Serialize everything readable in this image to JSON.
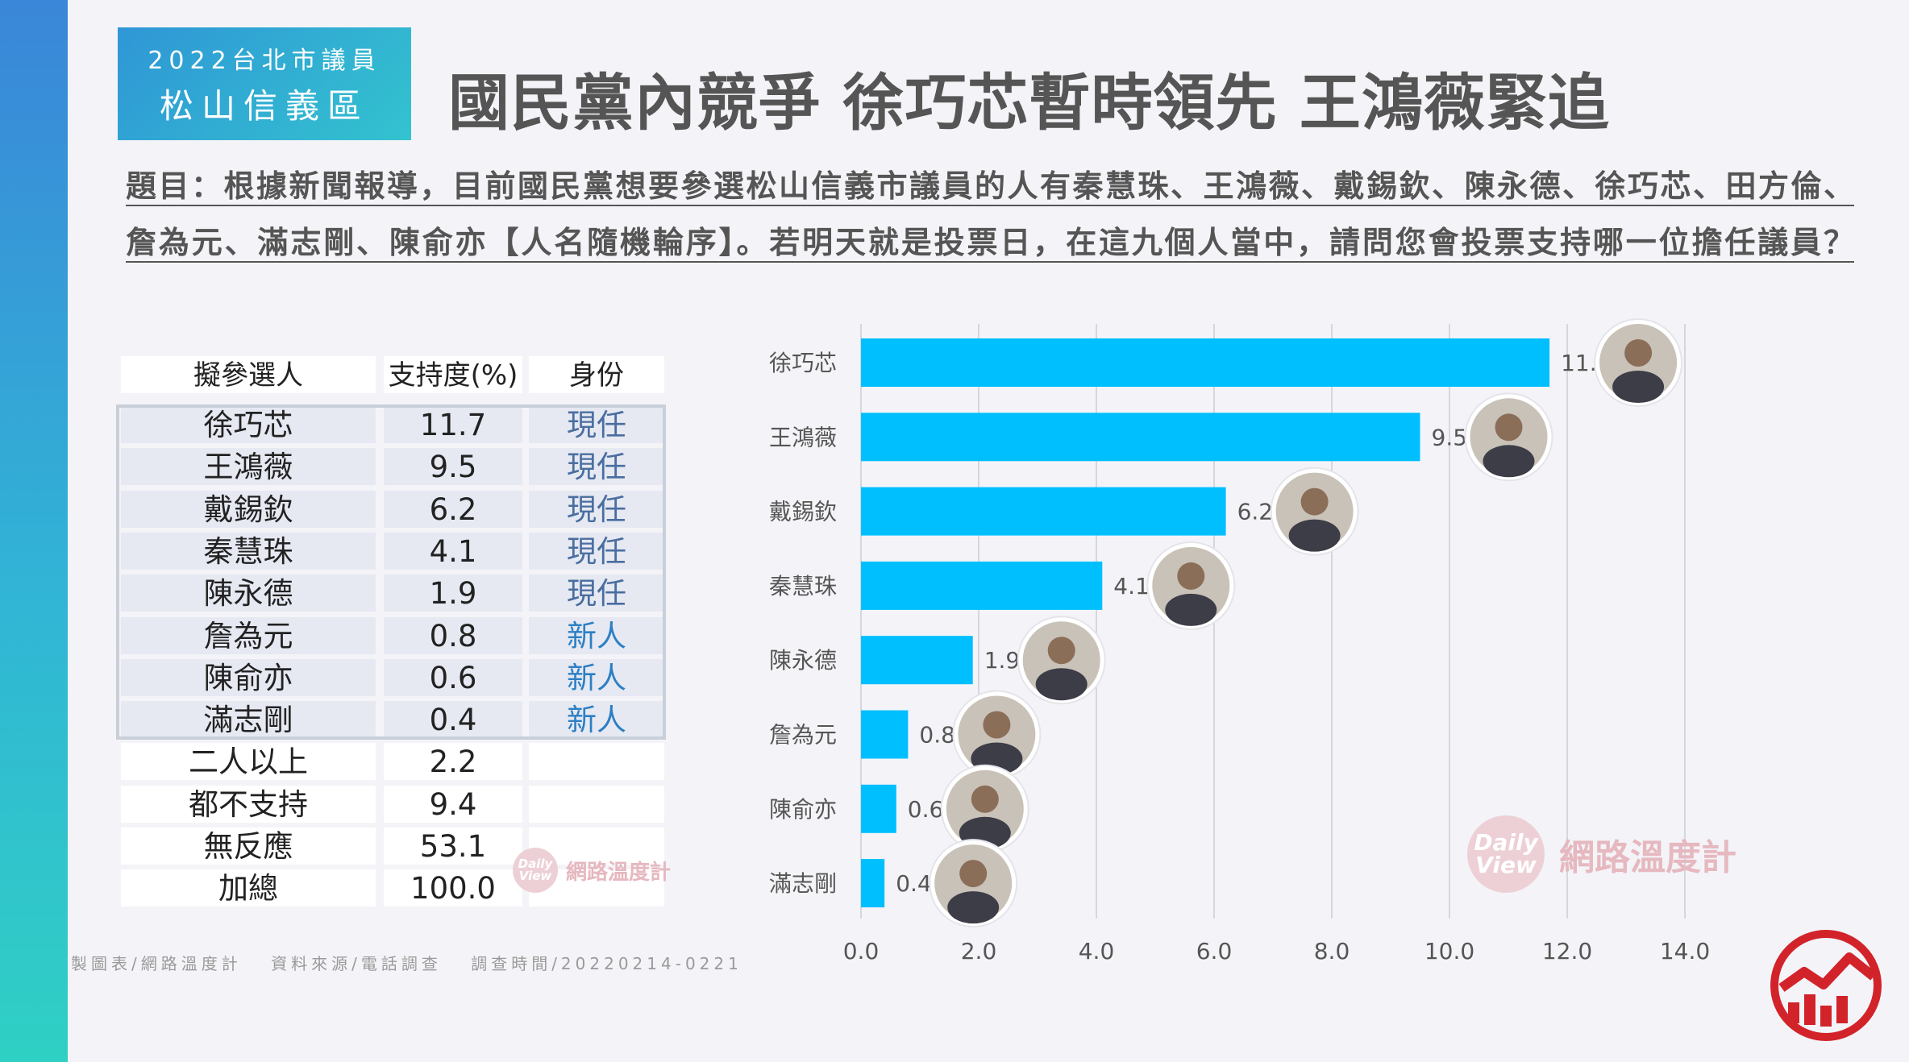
{
  "header": {
    "tag_line1": "2022台北市議員",
    "tag_line2": "松山信義區",
    "title": "國民黨內競爭 徐巧芯暫時領先 王鴻薇緊追"
  },
  "question": {
    "line1": "題目：根據新聞報導，目前國民黨想要參選松山信義市議員的人有秦慧珠、王鴻薇、戴錫欽、陳永德、徐巧芯、田方倫、",
    "line2": "詹為元、滿志剛、陳俞亦【人名隨機輪序】。若明天就是投票日，在這九個人當中，請問您會投票支持哪一位擔任議員？"
  },
  "table": {
    "headers": [
      "擬參選人",
      "支持度(%)",
      "身份"
    ],
    "rows": [
      {
        "name": "徐巧芯",
        "value": "11.7",
        "status": "現任"
      },
      {
        "name": "王鴻薇",
        "value": "9.5",
        "status": "現任"
      },
      {
        "name": "戴錫欽",
        "value": "6.2",
        "status": "現任"
      },
      {
        "name": "秦慧珠",
        "value": "4.1",
        "status": "現任"
      },
      {
        "name": "陳永德",
        "value": "1.9",
        "status": "現任"
      },
      {
        "name": "詹為元",
        "value": "0.8",
        "status": "新人"
      },
      {
        "name": "陳俞亦",
        "value": "0.6",
        "status": "新人"
      },
      {
        "name": "滿志剛",
        "value": "0.4",
        "status": "新人"
      },
      {
        "name": "二人以上",
        "value": "2.2",
        "status": ""
      },
      {
        "name": "都不支持",
        "value": "9.4",
        "status": ""
      },
      {
        "name": "無反應",
        "value": "53.1",
        "status": ""
      },
      {
        "name": "加總",
        "value": "100.0",
        "status": ""
      }
    ]
  },
  "chart_data": {
    "type": "bar",
    "orientation": "horizontal",
    "categories": [
      "徐巧芯",
      "王鴻薇",
      "戴錫欽",
      "秦慧珠",
      "陳永德",
      "詹為元",
      "陳俞亦",
      "滿志剛"
    ],
    "values": [
      11.7,
      9.5,
      6.2,
      4.1,
      1.9,
      0.8,
      0.6,
      0.4
    ],
    "xlim": [
      0,
      14
    ],
    "xticks": [
      "0.0",
      "2.0",
      "4.0",
      "6.0",
      "8.0",
      "10.0",
      "12.0",
      "14.0"
    ],
    "grid": true,
    "bar_color": "#00bfff"
  },
  "footer": {
    "text": "製圖表/網路溫度計　 資料來源/電話調查　 調查時間/20220214-0221"
  },
  "watermark": {
    "badge_line1": "Daily",
    "badge_line2": "View",
    "text": "網路溫度計"
  },
  "colors": {
    "accent": "#00bfff",
    "logo_red": "#d2232a",
    "side_gradient_top": "#3a86d8",
    "side_gradient_bottom": "#2fd0c4"
  }
}
